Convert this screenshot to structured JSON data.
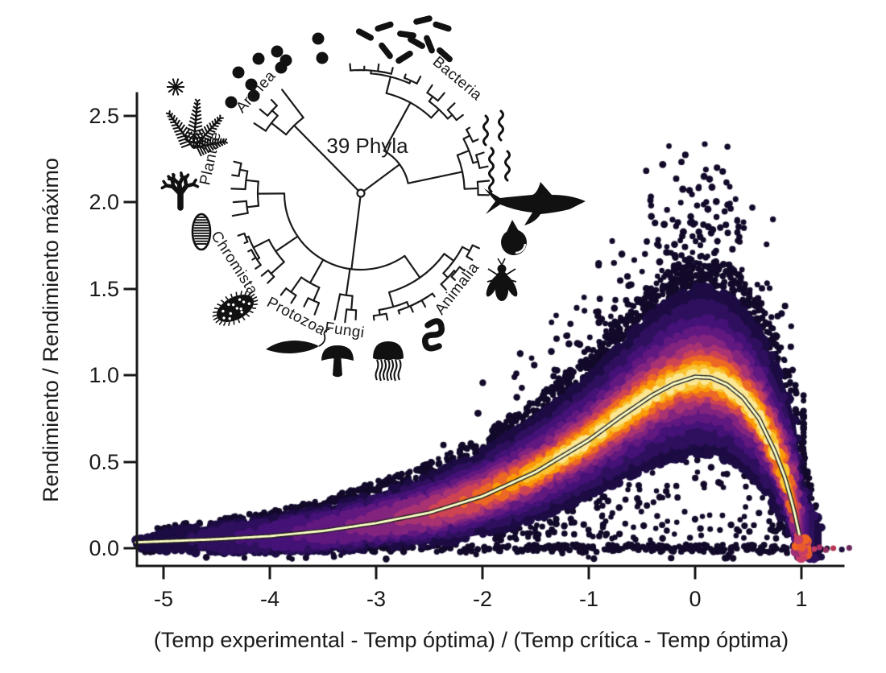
{
  "chart_data": {
    "type": "scatter",
    "subtype": "density-colored-scatter-with-fit-curve",
    "xlabel": "(Temp experimental - Temp óptima) / (Temp crítica - Temp óptima)",
    "ylabel": "Rendimiento / Rendimiento máximo",
    "x_tick_labels": [
      "-5",
      "-4",
      "-3",
      "-2",
      "-1",
      "0",
      "1"
    ],
    "x_tick_values": [
      -5,
      -4,
      -3,
      -2,
      -1,
      0,
      1
    ],
    "y_tick_labels": [
      "0.0",
      "0.5",
      "1.0",
      "1.5",
      "2.0",
      "2.5"
    ],
    "y_tick_values": [
      0.0,
      0.5,
      1.0,
      1.5,
      2.0,
      2.5
    ],
    "xlim": [
      -5.3,
      1.45
    ],
    "ylim": [
      -0.12,
      2.58
    ],
    "axis_color": "#1a1a1a",
    "grid": false,
    "fit_curve": {
      "color": "#ffffc8",
      "outline_color": "#1c1c1c",
      "peak": {
        "x": 0,
        "y": 1.0
      },
      "zero_crossing_x": 1.0,
      "x": [
        -5.3,
        -5,
        -4.5,
        -4,
        -3.5,
        -3,
        -2.5,
        -2,
        -1.5,
        -1,
        -0.7,
        -0.4,
        -0.2,
        0,
        0.15,
        0.3,
        0.45,
        0.6,
        0.75,
        0.85,
        0.93,
        0.98,
        1.0,
        1.05,
        1.2
      ],
      "y": [
        0.033,
        0.04,
        0.052,
        0.07,
        0.1,
        0.145,
        0.205,
        0.3,
        0.44,
        0.625,
        0.76,
        0.885,
        0.95,
        0.99,
        0.985,
        0.945,
        0.87,
        0.75,
        0.56,
        0.4,
        0.22,
        0.08,
        0.01,
        -0.015,
        -0.02
      ]
    },
    "spread_profile": {
      "x": [
        -5.3,
        -4.5,
        -4,
        -3.5,
        -3,
        -2.5,
        -2,
        -1.5,
        -1,
        -0.5,
        0,
        0.3,
        0.5,
        0.8,
        0.95,
        1.05,
        1.2
      ],
      "up": [
        0.05,
        0.08,
        0.1,
        0.13,
        0.17,
        0.21,
        0.26,
        0.31,
        0.36,
        0.46,
        0.52,
        0.52,
        0.5,
        0.52,
        0.55,
        0.35,
        0.12
      ],
      "dn": [
        0.05,
        0.07,
        0.09,
        0.12,
        0.14,
        0.18,
        0.22,
        0.27,
        0.32,
        0.4,
        0.45,
        0.43,
        0.4,
        0.3,
        0.18,
        0.07,
        0.03
      ]
    },
    "density_bands": [
      {
        "color": "#1c0c43",
        "frac": 1.0,
        "xmin": -5.26,
        "xmax": 1.19
      },
      {
        "color": "#2f105e",
        "frac": 0.82,
        "xmin": -4.8,
        "xmax": 1.12
      },
      {
        "color": "#451277",
        "frac": 0.66,
        "xmin": -4.3,
        "xmax": 1.07
      },
      {
        "color": "#611980",
        "frac": 0.53,
        "xmin": -3.75,
        "xmax": 1.035
      },
      {
        "color": "#83247f",
        "frac": 0.42,
        "xmin": -3.25,
        "xmax": 1.01
      },
      {
        "color": "#a93372",
        "frac": 0.335,
        "xmin": -2.8,
        "xmax": 0.99
      },
      {
        "color": "#cf4453",
        "frac": 0.26,
        "xmin": -2.48,
        "xmax": 0.975
      },
      {
        "color": "#ec6825",
        "frac": 0.195,
        "xmin": -2.18,
        "xmax": 0.955
      },
      {
        "color": "#fb9b07",
        "frac": 0.135,
        "xmin": -1.9,
        "xmax": 0.925
      },
      {
        "color": "#f8c432",
        "frac": 0.088,
        "xmin": -1.62,
        "xmax": 0.86
      },
      {
        "color": "#fbe793",
        "frac": 0.048,
        "xmin": -1.38,
        "xmax": 0.76
      }
    ],
    "point_color_outliers": "#130a2a",
    "scatter_layers": {
      "baseline": {
        "count": 430,
        "y_center": 0.0,
        "y_jitter": 0.022
      },
      "below_cloud": {
        "count": 270
      },
      "upper_fringe": {
        "count": 650
      },
      "upper_fan": {
        "count": 330,
        "x_center": -0.2,
        "y_max": 2.45
      }
    },
    "terminal_cluster": {
      "x": 1.0,
      "y": 0.0,
      "count": 28,
      "colors": [
        "#ef6420",
        "#e85a2b",
        "#c63d68",
        "#9c2d76"
      ]
    },
    "right_tail_points": [
      {
        "x": 1.12,
        "y": -0.005,
        "color": "#c23a5e"
      },
      {
        "x": 1.17,
        "y": 0.005,
        "color": "#a82f68"
      },
      {
        "x": 1.23,
        "y": -0.01,
        "color": "#8f2f60"
      },
      {
        "x": 1.3,
        "y": 0.0,
        "color": "#b63655"
      },
      {
        "x": 1.38,
        "y": -0.008,
        "color": "#201040"
      },
      {
        "x": 1.45,
        "y": 0.002,
        "color": "#6e2a5e"
      }
    ],
    "seed": 7
  },
  "inset_tree": {
    "center_label": "39 Phyla",
    "clades": [
      {
        "name": "Archea",
        "tips": 4
      },
      {
        "name": "Bacteria",
        "tips": 16
      },
      {
        "name": "Plantae",
        "tips": 5
      },
      {
        "name": "Chromista",
        "tips": 7
      },
      {
        "name": "Protozoa",
        "tips": 4
      },
      {
        "name": "Fungi",
        "tips": 3
      },
      {
        "name": "Animalia",
        "tips": 11
      }
    ],
    "icons": [
      "cocci-bacteria-icon",
      "cocci-pair-icon",
      "bacilli-bacteria-icon",
      "spirilla-bacteria-icon",
      "fern-icon",
      "coral-icon",
      "diatom-icon",
      "ciliate-icon",
      "flagellate-icon",
      "mushroom-icon",
      "jellyfish-icon",
      "worm-icon",
      "fly-icon",
      "snail-icon",
      "shark-icon"
    ]
  }
}
